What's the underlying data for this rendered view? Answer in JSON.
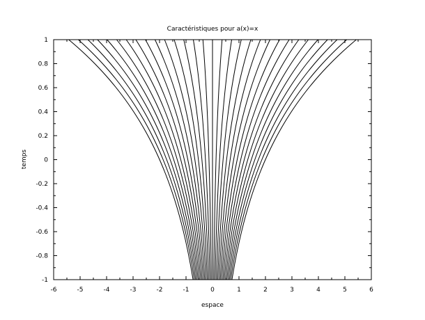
{
  "chart_data": {
    "type": "line",
    "title": "Caractéristiques pour a(x)=x",
    "xlabel": "espace",
    "ylabel": "temps",
    "xlim": [
      -6,
      6
    ],
    "ylim": [
      -1,
      1
    ],
    "xticks": [
      -6,
      -5,
      -4,
      -3,
      -2,
      -1,
      0,
      1,
      2,
      3,
      4,
      5,
      6
    ],
    "yticks": [
      -1,
      -0.8,
      -0.6,
      -0.4,
      -0.2,
      0,
      0.2,
      0.4,
      0.6,
      0.8,
      1
    ],
    "xtick_labels": [
      "-6",
      "-5",
      "-4",
      "-3",
      "-2",
      "-1",
      "0",
      "1",
      "2",
      "3",
      "4",
      "5",
      "6"
    ],
    "ytick_labels": [
      "-1",
      "-0.8",
      "-0.6",
      "-0.4",
      "-0.2",
      "0",
      "0.2",
      "0.4",
      "0.6",
      "0.8",
      "1"
    ],
    "grid": false,
    "line_color": "#000000",
    "series_description": "characteristic curves x(t) = x0 * exp(t + 1), t from -1 to 1",
    "x0_values": [
      -0.735,
      -0.686,
      -0.637,
      -0.588,
      -0.539,
      -0.49,
      -0.441,
      -0.392,
      -0.343,
      -0.294,
      -0.245,
      -0.196,
      -0.147,
      -0.098,
      -0.049,
      0,
      0.049,
      0.098,
      0.147,
      0.196,
      0.245,
      0.294,
      0.343,
      0.392,
      0.441,
      0.49,
      0.539,
      0.588,
      0.637,
      0.686,
      0.735
    ]
  }
}
